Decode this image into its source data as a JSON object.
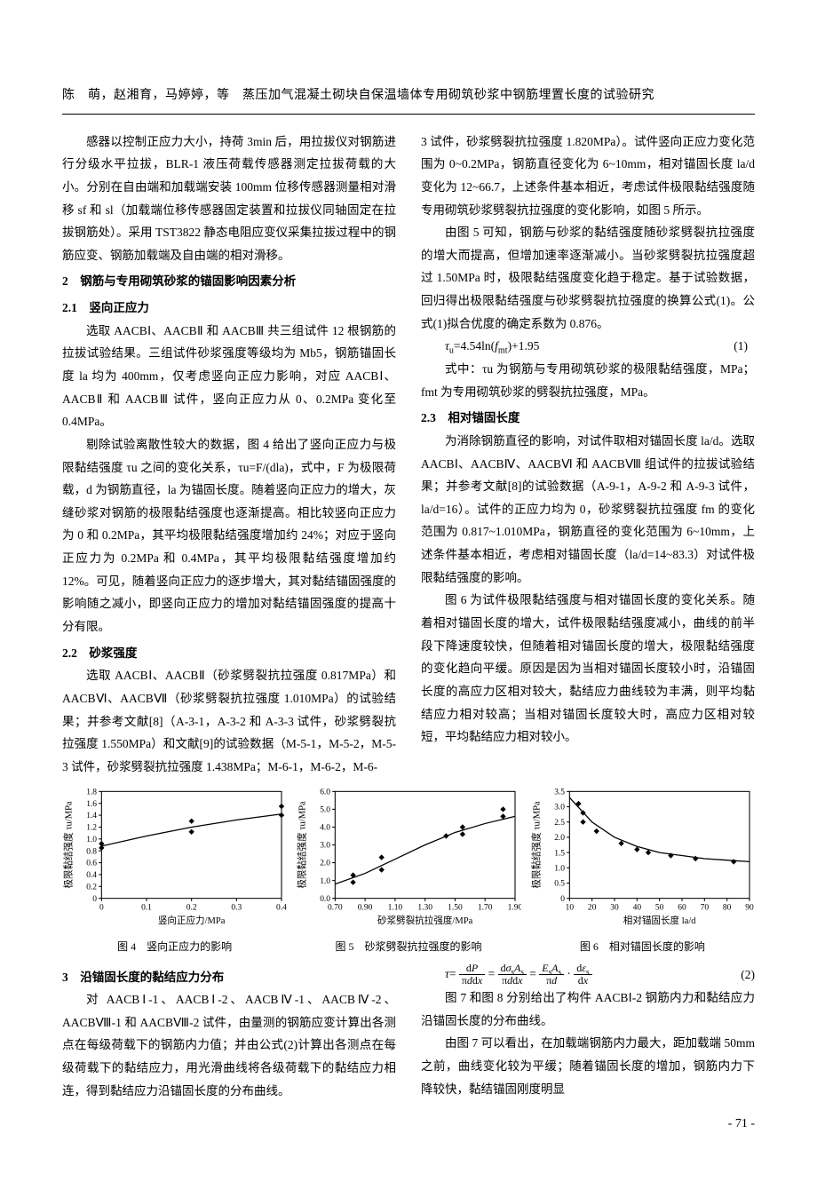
{
  "runningHeader": "陈　萌，赵湘育，马婷婷，等　蒸压加气混凝土砌块自保温墙体专用砌筑砂浆中钢筋埋置长度的试验研究",
  "paragraphs": {
    "p1": "感器以控制正应力大小，持荷 3min 后，用拉拔仪对钢筋进行分级水平拉拔，BLR-1 液压荷载传感器测定拉拔荷载的大小。分别在自由端和加载端安装 100mm 位移传感器测量相对滑移 sf 和 sl（加载端位移传感器固定装置和拉拔仪同轴固定在拉拔钢筋处）。采用 TST3822 静态电阻应变仪采集拉拔过程中的钢筋应变、钢筋加载端及自由端的相对滑移。",
    "sec2": "2　钢筋与专用砌筑砂浆的锚固影响因素分析",
    "sec21": "2.1　竖向正应力",
    "p2": "选取 AACBⅠ、AACBⅡ 和 AACBⅢ 共三组试件 12 根钢筋的拉拔试验结果。三组试件砂浆强度等级均为 Mb5，钢筋锚固长度 la 均为 400mm，仅考虑竖向正应力影响，对应 AACBⅠ、AACBⅡ 和 AACBⅢ 试件，竖向正应力从 0、0.2MPa 变化至 0.4MPa。",
    "p3": "剔除试验离散性较大的数据，图 4 给出了竖向正应力与极限黏结强度 τu 之间的变化关系，τu=F/(dla)，式中，F 为极限荷载，d 为钢筋直径，la 为锚固长度。随着竖向正应力的增大，灰缝砂浆对钢筋的极限黏结强度也逐渐提高。相比较竖向正应力为 0 和 0.2MPa，其平均极限黏结强度增加约 24%；对应于竖向正应力为 0.2MPa 和 0.4MPa，其平均极限黏结强度增加约 12%。可见，随着竖向正应力的逐步增大，其对黏结锚固强度的影响随之减小，即竖向正应力的增加对黏结锚固强度的提高十分有限。",
    "sec22": "2.2　砂浆强度",
    "p4": "选取 AACBⅠ、AACBⅡ（砂浆劈裂抗拉强度 0.817MPa）和 AACBⅥ、AACBⅦ（砂浆劈裂抗拉强度 1.010MPa）的试验结果；并参考文献[8]（A-3-1，A-3-2 和 A-3-3 试件，砂浆劈裂抗拉强度 1.550MPa）和文献[9]的试验数据（M-5-1，M-5-2，M-5-3 试件，砂浆劈裂抗拉强度 1.438MPa；M-6-1，M-6-2，M-6-",
    "p5": "3 试件，砂浆劈裂抗拉强度 1.820MPa）。试件竖向正应力变化范围为 0~0.2MPa，钢筋直径变化为 6~10mm，相对锚固长度 la/d 变化为 12~66.7，上述条件基本相近，考虑试件极限黏结强度随专用砌筑砂浆劈裂抗拉强度的变化影响，如图 5 所示。",
    "p6": "由图 5 可知，钢筋与砂浆的黏结强度随砂浆劈裂抗拉强度的增大而提高，但增加速率逐渐减小。当砂浆劈裂抗拉强度超过 1.50MPa 时，极限黏结强度变化趋于稳定。基于试验数据，回归得出极限黏结强度与砂浆劈裂抗拉强度的换算公式(1)。公式(1)拟合优度的确定系数为 0.876。",
    "eq1": "τu=4.54ln(fmt)+1.95",
    "eq1num": "(1)",
    "p7": "式中：τu 为钢筋与专用砌筑砂浆的极限黏结强度，MPa；fmt 为专用砌筑砂浆的劈裂抗拉强度，MPa。",
    "sec23": "2.3　相对锚固长度",
    "p8": "为消除钢筋直径的影响，对试件取相对锚固长度 la/d。选取 AACBⅠ、AACBⅣ、AACBⅥ 和 AACBⅧ 组试件的拉拔试验结果；并参考文献[8]的试验数据（A-9-1，A-9-2 和 A-9-3 试件，la/d=16）。试件的正应力均为 0，砂浆劈裂抗拉强度 fm 的变化范围为 0.817~1.010MPa，钢筋直径的变化范围为 6~10mm，上述条件基本相近，考虑相对锚固长度（la/d=14~83.3）对试件极限黏结强度的影响。",
    "p9": "图 6 为试件极限黏结强度与相对锚固长度的变化关系。随着相对锚固长度的增大，试件极限黏结强度减小，曲线的前半段下降速度较快，但随着相对锚固长度的增大，极限黏结强度的变化趋向平缓。原因是因为当相对锚固长度较小时，沿锚固长度的高应力区相对较大，黏结应力曲线较为丰满，则平均黏结应力相对较高；当相对锚固长度较大时，高应力区相对较短，平均黏结应力相对较小。",
    "sec3": "3　沿锚固长度的黏结应力分布",
    "p10": "对 AACBⅠ-1、AACBⅠ-2、AACBⅣ-1、AACBⅣ-2、AACBⅧ-1 和 AACBⅧ-2 试件，由量测的钢筋应变计算出各测点在每级荷载下的钢筋内力值；并由公式(2)计算出各测点在每级荷载下的黏结应力，用光滑曲线将各级荷载下的黏结应力相连，得到黏结应力沿锚固长度的分布曲线。",
    "eq2num": "(2)",
    "p11": "图 7 和图 8 分别给出了构件 AACBⅠ-2 钢筋内力和黏结应力沿锚固长度的分布曲线。",
    "p12": "由图 7 可以看出，在加载端钢筋内力最大，距加载端 50mm 之前，曲线变化较为平缓；随着锚固长度的增加，钢筋内力下降较快，黏结锚固刚度明显"
  },
  "figures": {
    "fig4": {
      "caption": "图 4　竖向正应力的影响",
      "ylabel": "极限黏结强度 τu/MPa",
      "xlabel": "竖向正应力/MPa",
      "yticks": [
        "0",
        "0.2",
        "0.4",
        "0.6",
        "0.8",
        "1.0",
        "1.2",
        "1.4",
        "1.6",
        "1.8"
      ],
      "xticks": [
        "0",
        "0.1",
        "0.2",
        "0.3",
        "0.4"
      ],
      "points": [
        [
          0,
          0.85
        ],
        [
          0,
          0.92
        ],
        [
          0.2,
          1.12
        ],
        [
          0.2,
          1.3
        ],
        [
          0.4,
          1.4
        ],
        [
          0.4,
          1.55
        ]
      ],
      "curve": [
        [
          0,
          0.88
        ],
        [
          0.1,
          1.05
        ],
        [
          0.2,
          1.2
        ],
        [
          0.3,
          1.32
        ],
        [
          0.4,
          1.42
        ]
      ],
      "line_color": "#000000",
      "point_color": "#000000",
      "background_color": "#ffffff",
      "font_size": 9
    },
    "fig5": {
      "caption": "图 5　砂浆劈裂抗拉强度的影响",
      "ylabel": "极限黏结强度 τu/MPa",
      "xlabel": "砂浆劈裂抗拉强度/MPa",
      "yticks": [
        "0.0",
        "1.0",
        "2.0",
        "3.0",
        "4.0",
        "5.0",
        "6.0"
      ],
      "xticks": [
        "0.70",
        "0.90",
        "1.10",
        "1.30",
        "1.50",
        "1.70",
        "1.90"
      ],
      "points": [
        [
          0.82,
          0.9
        ],
        [
          0.82,
          1.3
        ],
        [
          1.01,
          1.6
        ],
        [
          1.01,
          2.3
        ],
        [
          1.44,
          3.5
        ],
        [
          1.55,
          4.0
        ],
        [
          1.55,
          3.6
        ],
        [
          1.82,
          4.6
        ],
        [
          1.82,
          5.0
        ]
      ],
      "curve": [
        [
          0.7,
          0.8
        ],
        [
          0.9,
          1.4
        ],
        [
          1.1,
          2.2
        ],
        [
          1.3,
          3.0
        ],
        [
          1.5,
          3.7
        ],
        [
          1.7,
          4.2
        ],
        [
          1.9,
          4.6
        ]
      ],
      "line_color": "#000000",
      "point_color": "#000000",
      "background_color": "#ffffff",
      "font_size": 9
    },
    "fig6": {
      "caption": "图 6　相对锚固长度的影响",
      "ylabel": "极限黏结强度 τu/MPa",
      "xlabel": "相对锚固长度 la/d",
      "yticks": [
        "0",
        "0.5",
        "1.0",
        "1.5",
        "2.0",
        "2.5",
        "3.0",
        "3.5"
      ],
      "xticks": [
        "10",
        "20",
        "30",
        "40",
        "50",
        "60",
        "70",
        "80",
        "90"
      ],
      "points": [
        [
          14,
          3.1
        ],
        [
          16,
          2.8
        ],
        [
          16,
          2.5
        ],
        [
          22,
          2.2
        ],
        [
          33,
          1.8
        ],
        [
          40,
          1.6
        ],
        [
          45,
          1.5
        ],
        [
          55,
          1.4
        ],
        [
          66,
          1.3
        ],
        [
          83,
          1.2
        ]
      ],
      "curve": [
        [
          10,
          3.3
        ],
        [
          20,
          2.5
        ],
        [
          30,
          2.0
        ],
        [
          40,
          1.7
        ],
        [
          50,
          1.5
        ],
        [
          60,
          1.4
        ],
        [
          70,
          1.3
        ],
        [
          80,
          1.25
        ],
        [
          90,
          1.2
        ]
      ],
      "line_color": "#000000",
      "point_color": "#000000",
      "background_color": "#ffffff",
      "font_size": 9
    }
  },
  "pageNum": "- 71 -"
}
